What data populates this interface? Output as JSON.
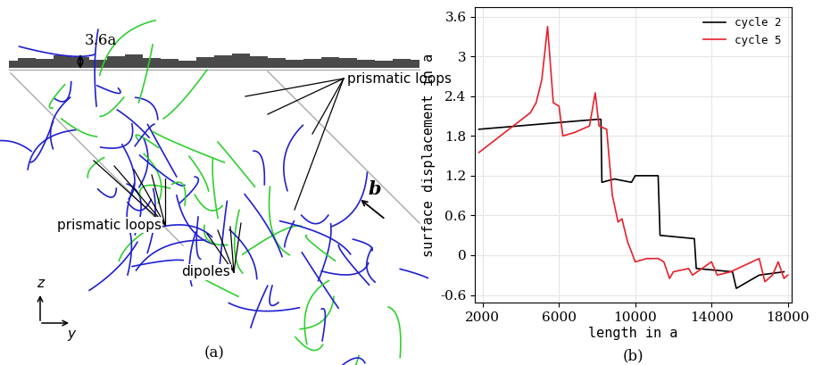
{
  "diagram": {
    "caption": "(a)",
    "height_label": "3.6a",
    "prismatic_loop_labels": [
      "prismatic loops",
      "prismatic loops"
    ],
    "dipole_label": "dipoles",
    "burgers_vector": "b",
    "axis_labels": [
      "z",
      "y"
    ]
  },
  "chart_data": {
    "type": "line",
    "caption": "(b)",
    "xlabel": "length in a",
    "ylabel": "surface displacement in a",
    "xlim": [
      1600,
      18200
    ],
    "ylim": [
      -0.72,
      3.74
    ],
    "xticks": [
      2000,
      6000,
      10000,
      14000,
      18000
    ],
    "yticks": [
      -0.6,
      0,
      0.6,
      1.2,
      1.8,
      2.4,
      3,
      3.6
    ],
    "grid": true,
    "legend": "upper right",
    "series": [
      {
        "name": "cycle 2",
        "color": "#000000",
        "x": [
          1800,
          8000,
          8200,
          8250,
          8900,
          9800,
          10000,
          11200,
          11300,
          13100,
          13200,
          15100,
          15300,
          16500,
          17800
        ],
        "values": [
          1.9,
          2.05,
          2.05,
          1.1,
          1.15,
          1.1,
          1.2,
          1.2,
          0.3,
          0.25,
          -0.2,
          -0.25,
          -0.5,
          -0.3,
          -0.25
        ]
      },
      {
        "name": "cycle 5",
        "color": "#e8202a",
        "x": [
          1800,
          4500,
          4800,
          5100,
          5400,
          5700,
          6000,
          6200,
          6800,
          7600,
          7900,
          8100,
          8500,
          8800,
          9100,
          9300,
          9600,
          10000,
          10600,
          11200,
          11500,
          11800,
          12000,
          12800,
          13000,
          14000,
          14300,
          15000,
          16500,
          16800,
          17200,
          17500,
          17800,
          18000
        ],
        "values": [
          1.55,
          2.15,
          2.3,
          2.65,
          3.45,
          2.3,
          2.25,
          1.8,
          1.85,
          1.95,
          2.45,
          1.95,
          1.9,
          0.9,
          0.5,
          0.55,
          0.2,
          -0.1,
          -0.05,
          -0.05,
          -0.1,
          -0.35,
          -0.25,
          -0.2,
          -0.3,
          -0.1,
          -0.3,
          -0.25,
          -0.05,
          -0.4,
          -0.3,
          -0.1,
          -0.35,
          -0.3
        ]
      }
    ]
  }
}
